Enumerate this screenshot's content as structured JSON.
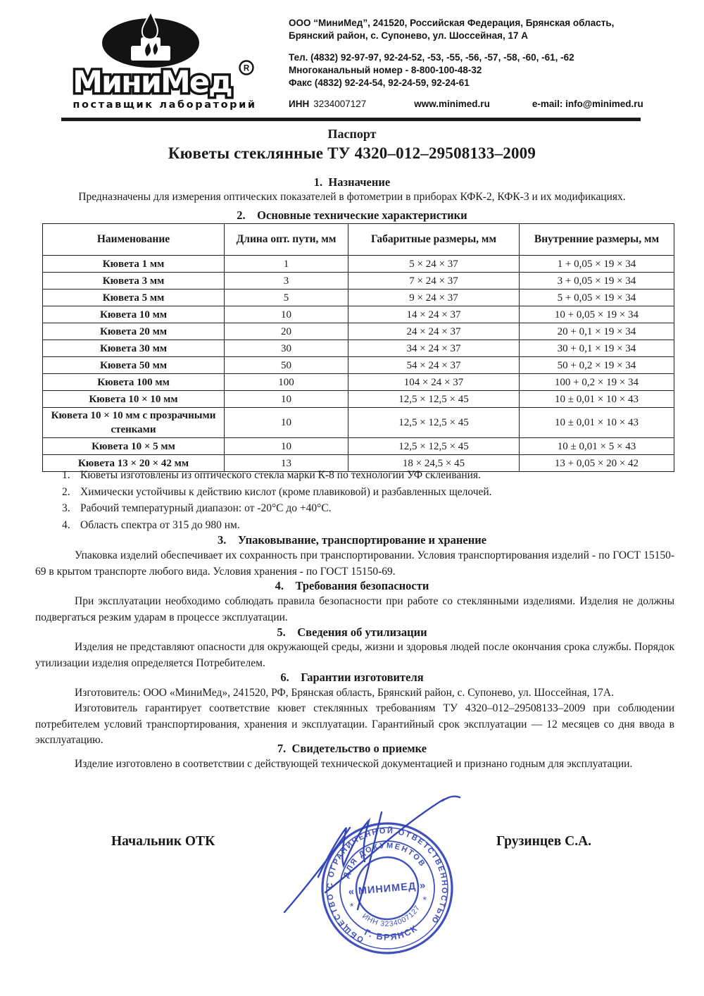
{
  "header": {
    "brand": "МиниМед",
    "reg_mark": "R",
    "tagline": "поставщик  лабораторий",
    "address_line1": "ООО “МиниМед”, 241520, Российская Федерация, Брянская область,",
    "address_line2": "Брянский район, с. Супонево, ул. Шоссейная, 17 А",
    "phone": "Тел. (4832) 92-97-97, 92-24-52, -53, -55, -56, -57, -58, -60, -61, -62",
    "multichannel": "Многоканальный номер - 8-800-100-48-32",
    "fax": "Факс (4832) 92-24-54, 92-24-59, 92-24-61",
    "inn_label": "ИНН",
    "inn_value": "3234007127",
    "website": "www.minimed.ru",
    "email": "e-mail: info@minimed.ru"
  },
  "doc": {
    "passport": "Паспорт",
    "title": "Кюветы стеклянные ТУ 4320–012–29508133–2009"
  },
  "sections": {
    "s1_heading": "1.  Назначение",
    "s1_text": "Предназначены для измерения оптических показателей в фотометрии в приборах КФК-2, КФК-3 и их модификациях.",
    "s2_heading": "2.    Основные технические характеристики",
    "s3_heading": "3.    Упаковывание, транспортирование и хранение",
    "s3_text": "Упаковка изделий обеспечивает их сохранность при транспортировании. Условия транспортирования изделий - по ГОСТ 15150-69 в крытом транспорте любого вида. Условия хранения - по ГОСТ 15150-69.",
    "s4_heading": "4.    Требования безопасности",
    "s4_text": "При эксплуатации необходимо соблюдать правила безопасности при работе со стеклянными изделиями. Изделия не должны подвергаться резким ударам в процессе эксплуатации.",
    "s5_heading": "5.    Сведения об утилизации",
    "s5_text": "Изделия не представляют опасности для окружающей среды, жизни и здоровья людей после окончания срока службы. Порядок утилизации изделия определяется Потребителем.",
    "s6_heading": "6.    Гарантии изготовителя",
    "s6_text1": "Изготовитель: ООО «МиниМед», 241520, РФ, Брянская область, Брянский район, с. Супонево, ул. Шоссейная, 17А.",
    "s6_text2": "Изготовитель гарантирует соответствие кювет стеклянных требованиям ТУ 4320–012–29508133–2009 при соблюдении потребителем условий транспортирования, хранения и эксплуатации. Гарантийный срок эксплуатации — 12 месяцев со дня ввода в эксплуатацию.",
    "s7_heading": "7.  Свидетельство о приемке",
    "s7_text": "Изделие изготовлено в соответствии с действующей технической документацией и признано годным для эксплуатации."
  },
  "table": {
    "headers": [
      "Наименование",
      "Длина опт. пути, мм",
      "Габаритные размеры, мм",
      "Внутренние размеры, мм"
    ],
    "rows": [
      [
        "Кювета 1 мм",
        "1",
        "5 × 24 × 37",
        "1 + 0,05 × 19 × 34"
      ],
      [
        "Кювета 3 мм",
        "3",
        "7 × 24 × 37",
        "3 + 0,05 × 19 × 34"
      ],
      [
        "Кювета 5 мм",
        "5",
        "9 × 24 × 37",
        "5 + 0,05 × 19 × 34"
      ],
      [
        "Кювета 10 мм",
        "10",
        "14 × 24 × 37",
        "10 + 0,05 × 19 × 34"
      ],
      [
        "Кювета 20 мм",
        "20",
        "24 × 24 × 37",
        "20 + 0,1 × 19 × 34"
      ],
      [
        "Кювета 30 мм",
        "30",
        "34 × 24 × 37",
        "30 + 0,1 × 19 × 34"
      ],
      [
        "Кювета 50 мм",
        "50",
        "54 × 24 × 37",
        "50 + 0,2 × 19 × 34"
      ],
      [
        "Кювета 100 мм",
        "100",
        "104 × 24 × 37",
        "100 + 0,2 × 19 × 34"
      ],
      [
        "Кювета 10 × 10 мм",
        "10",
        "12,5 × 12,5 × 45",
        "10 ± 0,01 × 10 × 43"
      ],
      [
        "Кювета 10 × 10 мм с прозрачными стенками",
        "10",
        "12,5 × 12,5 × 45",
        "10 ± 0,01 × 10 × 43"
      ],
      [
        "Кювета 10 × 5 мм",
        "10",
        "12,5 × 12,5 × 45",
        "10 ± 0,01 × 5 × 43"
      ],
      [
        "Кювета 13 × 20 × 42 мм",
        "13",
        "18 × 24,5 × 45",
        "13 + 0,05 × 20 × 42"
      ]
    ]
  },
  "notes": [
    "Кюветы изготовлены из оптического стекла марки К-8 по технологии УФ склеивания.",
    "Химически устойчивы к действию кислот (кроме плавиковой) и разбавленных щелочей.",
    "Рабочий температурный диапазон: от -20°С до +40°С.",
    "Область спектра от 315 до 980 нм."
  ],
  "footer": {
    "left_title": "Начальник ОТК",
    "right_name": "Грузинцев С.А."
  },
  "stamp": {
    "color": "#2c3eb5",
    "outer_text": "ОБЩЕСТВО С ОГРАНИЧЕННОЙ ОТВЕТСТВЕННОСТЬЮ",
    "inner_top": "ДЛЯ  ДОКУМЕНТОВ",
    "center": "« МИНИМЕД »",
    "inn_text": "ИНН  3234007127",
    "city": "Г.  БРЯНСК",
    "star_left": "*",
    "star_right": "*"
  }
}
